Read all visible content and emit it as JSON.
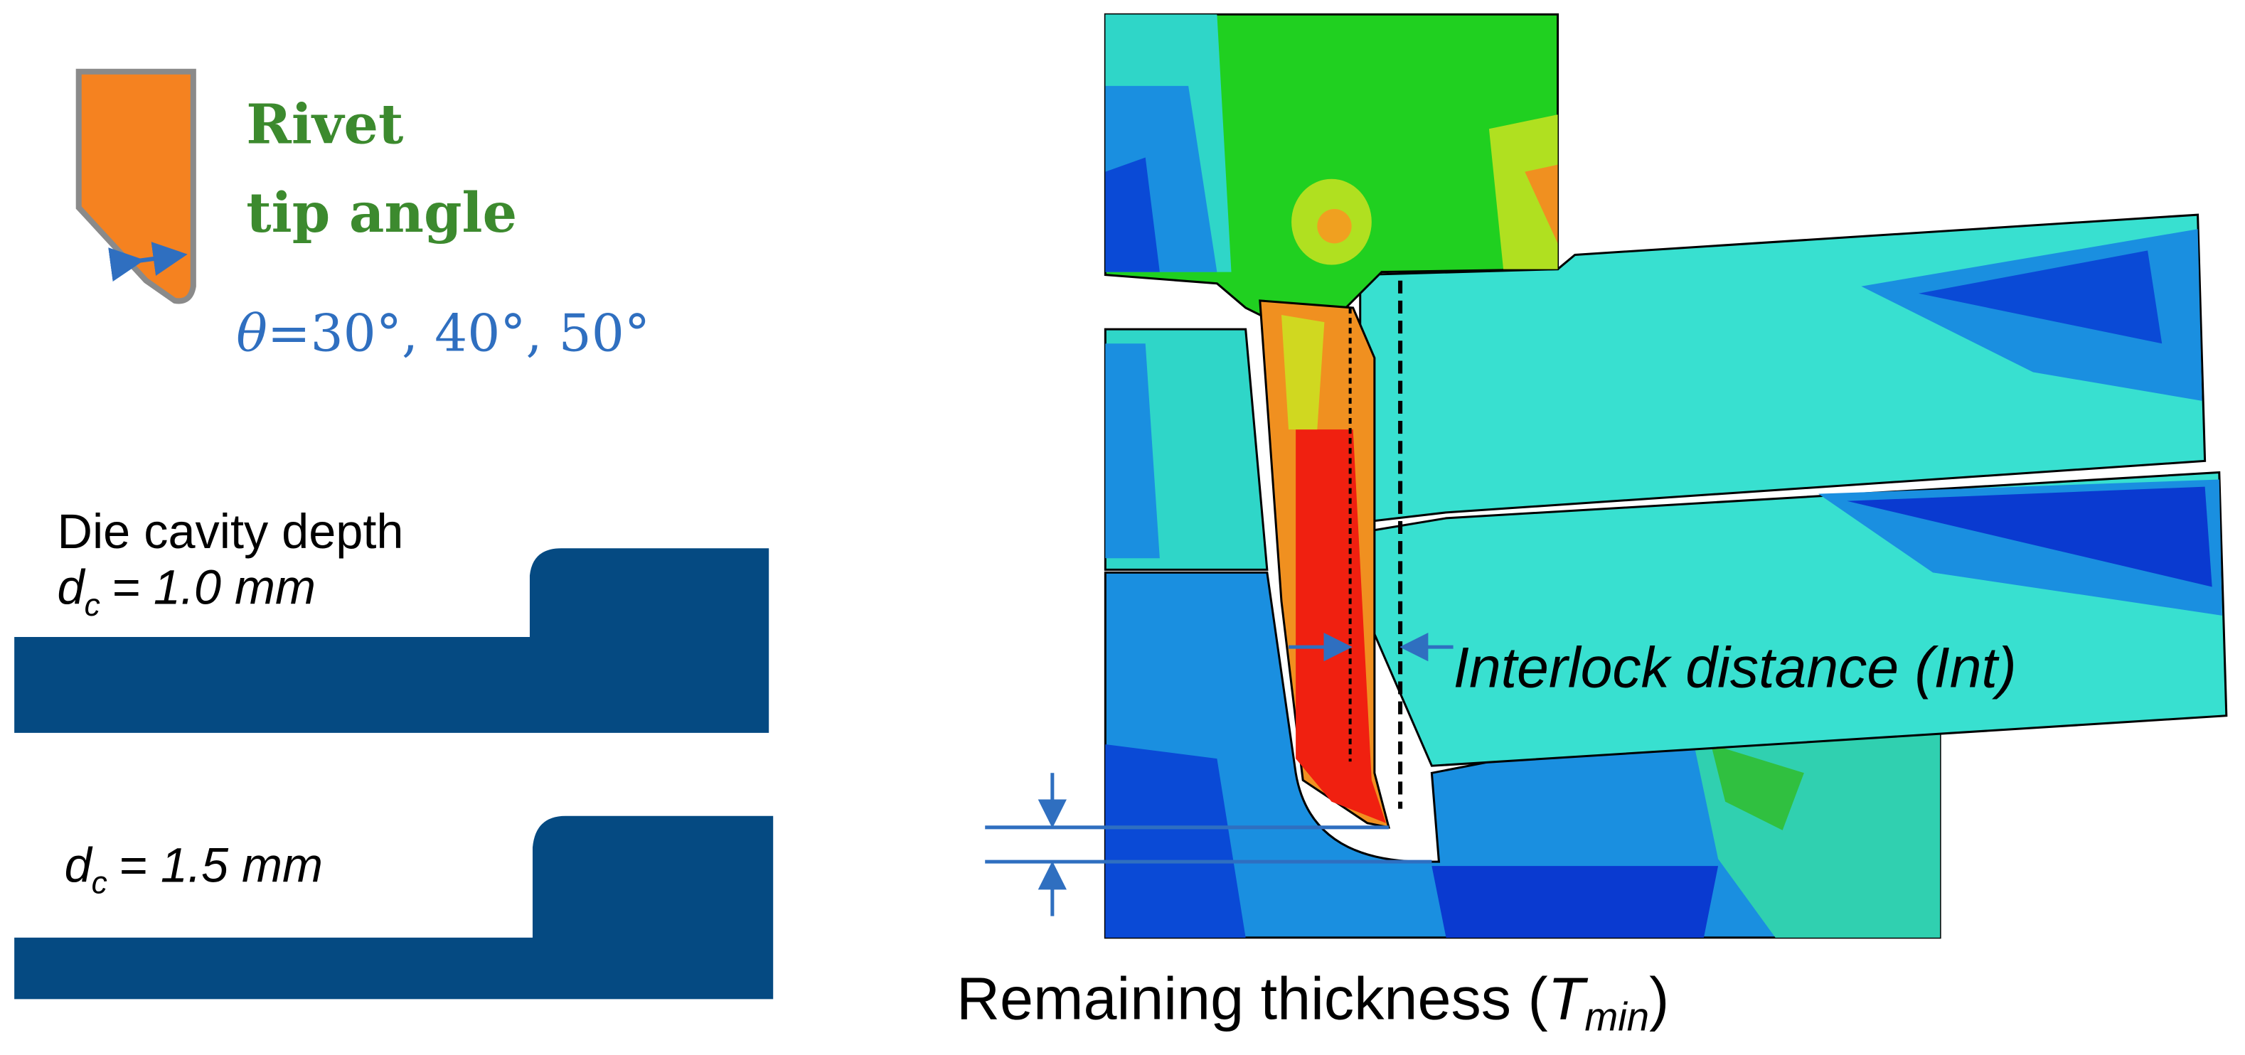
{
  "rivet": {
    "title_line1": "Rivet",
    "title_line2": "tip angle",
    "angle_symbol": "θ",
    "angle_values": "=30°, 40°, 50°"
  },
  "die": {
    "heading": "Die cavity depth",
    "case1": {
      "symbol": "d",
      "subscript": "c",
      "value": "= 1.0 mm"
    },
    "case2": {
      "symbol": "d",
      "subscript": "c",
      "value": "= 1.5 mm"
    }
  },
  "simulation": {
    "interlock_label": "Interlock distance (Int)",
    "thickness_label": {
      "prefix": "Remaining thickness (",
      "symbol": "T",
      "subscript": "min",
      "suffix": ")"
    }
  }
}
